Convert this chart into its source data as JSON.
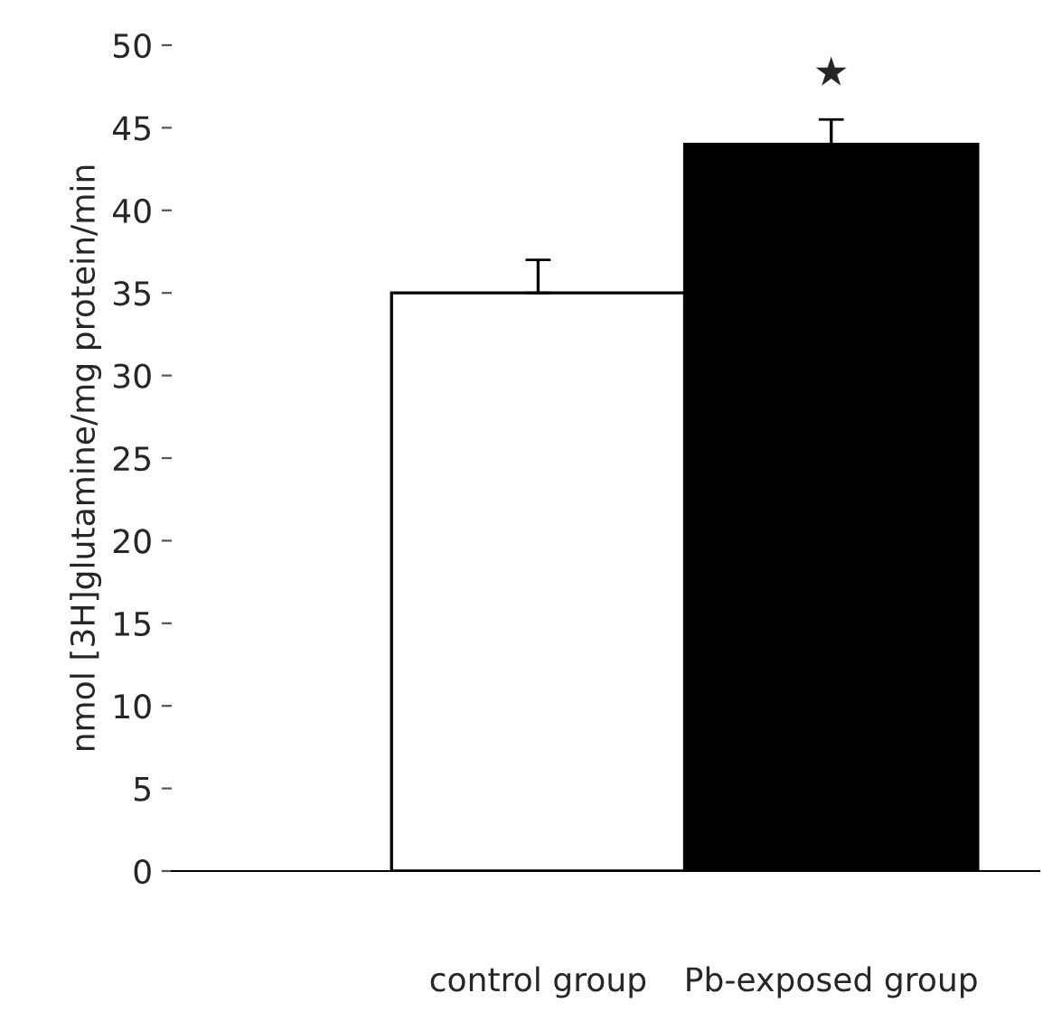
{
  "chart_data": {
    "type": "bar",
    "ylabel": "nmol [3H]glutamine/mg protein/min",
    "categories": [
      "control group",
      "Pb-exposed group"
    ],
    "values": [
      35,
      44
    ],
    "errors": [
      2,
      1.5
    ],
    "colors": [
      "#ffffff",
      "#000000"
    ],
    "ylim": [
      0,
      50
    ],
    "yticks": [
      0,
      5,
      10,
      15,
      20,
      25,
      30,
      35,
      40,
      45,
      50
    ],
    "grid": false,
    "annotations": [
      "★"
    ]
  }
}
